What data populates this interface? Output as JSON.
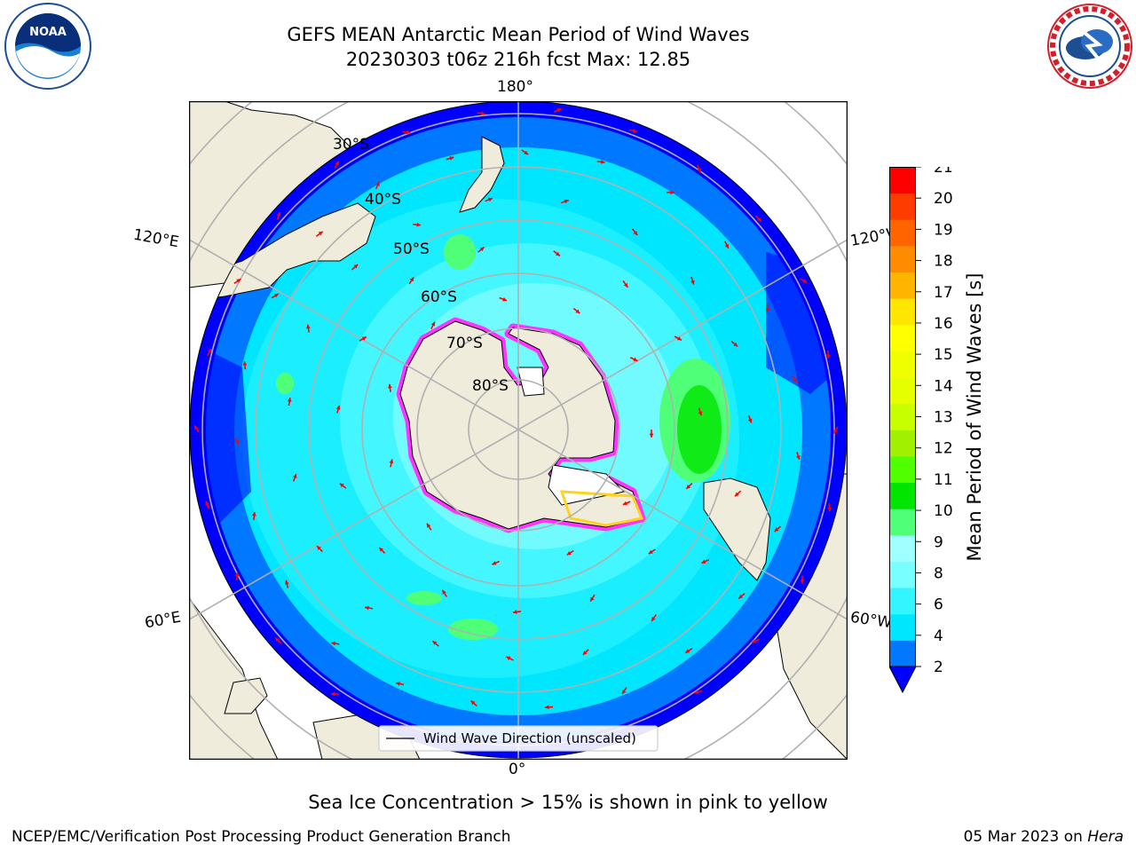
{
  "title": {
    "line1": "GEFS MEAN Antarctic Mean Period of Wind Waves",
    "line2": "20230303 t06z 216h fcst   Max: 12.85"
  },
  "map": {
    "projection": "south polar stereographic",
    "longitude_labels": [
      "180°",
      "120°E",
      "120°W",
      "60°E",
      "60°W",
      "0°"
    ],
    "latitude_labels": [
      "30°S",
      "40°S",
      "50°S",
      "60°S",
      "70°S",
      "80°S"
    ],
    "legend_label": "Wind Wave Direction (unscaled)",
    "arrow_color": "#ff0000",
    "land_color": "#efecdc",
    "sea_ice_colors": [
      "#ff33ff",
      "#ff69b4",
      "#ffd21e"
    ]
  },
  "colorbar": {
    "label": "Mean Period of Wind Waves [s]",
    "ticks": [
      "21",
      "20",
      "19",
      "18",
      "17",
      "16",
      "15",
      "14",
      "13",
      "12",
      "11",
      "10",
      "9",
      "8",
      "6",
      "4",
      "2"
    ],
    "colors_low_to_high": [
      "#0078ff",
      "#00e6ff",
      "#32f5ff",
      "#78ffff",
      "#a0ffff",
      "#50ff78",
      "#00e600",
      "#50ff00",
      "#a0f000",
      "#c8ff00",
      "#e6ff00",
      "#f0ff00",
      "#ffff00",
      "#ffe600",
      "#ffb400",
      "#ff8c00",
      "#ff6400",
      "#ff3c00",
      "#ff0000"
    ],
    "under_color": "#0000ff"
  },
  "caption": "Sea Ice Concentration > 15% is shown in pink to yellow",
  "footer": {
    "left": "NCEP/EMC/Verification Post Processing Product Generation Branch",
    "date": "05 Mar 2023 on ",
    "host": "Hera"
  },
  "logos": {
    "noaa": "NOAA",
    "nws": "NATIONAL WEATHER SERVICE"
  }
}
